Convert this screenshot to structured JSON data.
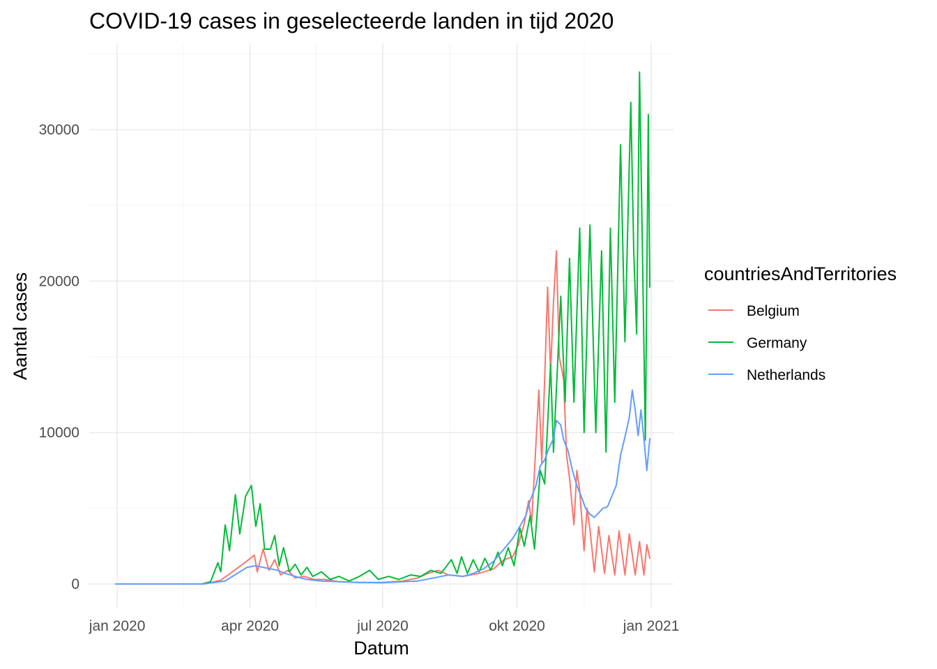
{
  "chart_data": {
    "type": "line",
    "title": "COVID-19 cases in geselecteerde landen in tijd 2020",
    "xlabel": "Datum",
    "ylabel": "Aantal cases",
    "x_range": [
      "2019-12-31",
      "2020-12-31"
    ],
    "ylim": [
      0,
      34000
    ],
    "x_ticks": [
      {
        "date": "2020-01-01",
        "label": "jan 2020"
      },
      {
        "date": "2020-04-01",
        "label": "apr 2020"
      },
      {
        "date": "2020-07-01",
        "label": "jul 2020"
      },
      {
        "date": "2020-10-01",
        "label": "okt 2020"
      },
      {
        "date": "2021-01-01",
        "label": "jan 2021"
      }
    ],
    "y_ticks": [
      {
        "value": 0,
        "label": "0"
      },
      {
        "value": 10000,
        "label": "10000"
      },
      {
        "value": 20000,
        "label": "20000"
      },
      {
        "value": 30000,
        "label": "30000"
      }
    ],
    "grid": true,
    "legend": {
      "title": "countriesAndTerritories",
      "position": "right"
    },
    "series": [
      {
        "name": "Belgium",
        "color": "#F8766D",
        "points": [
          [
            "2019-12-31",
            0
          ],
          [
            "2020-02-04",
            0
          ],
          [
            "2020-03-01",
            0
          ],
          [
            "2020-03-12",
            250
          ],
          [
            "2020-03-20",
            800
          ],
          [
            "2020-03-27",
            1300
          ],
          [
            "2020-03-31",
            1600
          ],
          [
            "2020-04-04",
            1900
          ],
          [
            "2020-04-06",
            800
          ],
          [
            "2020-04-10",
            2300
          ],
          [
            "2020-04-14",
            900
          ],
          [
            "2020-04-18",
            1600
          ],
          [
            "2020-04-22",
            600
          ],
          [
            "2020-04-27",
            900
          ],
          [
            "2020-05-02",
            400
          ],
          [
            "2020-05-08",
            500
          ],
          [
            "2020-05-15",
            300
          ],
          [
            "2020-05-22",
            300
          ],
          [
            "2020-06-01",
            150
          ],
          [
            "2020-06-15",
            100
          ],
          [
            "2020-07-01",
            100
          ],
          [
            "2020-07-15",
            200
          ],
          [
            "2020-07-25",
            400
          ],
          [
            "2020-08-01",
            700
          ],
          [
            "2020-08-08",
            900
          ],
          [
            "2020-08-15",
            600
          ],
          [
            "2020-08-25",
            500
          ],
          [
            "2020-09-05",
            700
          ],
          [
            "2020-09-15",
            1000
          ],
          [
            "2020-09-22",
            1600
          ],
          [
            "2020-09-28",
            1800
          ],
          [
            "2020-10-02",
            2600
          ],
          [
            "2020-10-06",
            4000
          ],
          [
            "2020-10-09",
            5500
          ],
          [
            "2020-10-11",
            4000
          ],
          [
            "2020-10-13",
            7500
          ],
          [
            "2020-10-16",
            12800
          ],
          [
            "2020-10-18",
            8000
          ],
          [
            "2020-10-20",
            13600
          ],
          [
            "2020-10-22",
            19600
          ],
          [
            "2020-10-24",
            14000
          ],
          [
            "2020-10-26",
            18600
          ],
          [
            "2020-10-28",
            22000
          ],
          [
            "2020-10-30",
            15000
          ],
          [
            "2020-11-02",
            13500
          ],
          [
            "2020-11-04",
            8500
          ],
          [
            "2020-11-06",
            7000
          ],
          [
            "2020-11-09",
            3900
          ],
          [
            "2020-11-11",
            7500
          ],
          [
            "2020-11-13",
            6200
          ],
          [
            "2020-11-16",
            2200
          ],
          [
            "2020-11-18",
            5000
          ],
          [
            "2020-11-20",
            3600
          ],
          [
            "2020-11-23",
            800
          ],
          [
            "2020-11-26",
            3800
          ],
          [
            "2020-11-30",
            700
          ],
          [
            "2020-12-03",
            3200
          ],
          [
            "2020-12-07",
            600
          ],
          [
            "2020-12-10",
            3500
          ],
          [
            "2020-12-14",
            600
          ],
          [
            "2020-12-17",
            3300
          ],
          [
            "2020-12-21",
            600
          ],
          [
            "2020-12-24",
            2800
          ],
          [
            "2020-12-27",
            600
          ],
          [
            "2020-12-29",
            2600
          ],
          [
            "2020-12-31",
            1700
          ]
        ]
      },
      {
        "name": "Germany",
        "color": "#00BA38",
        "points": [
          [
            "2019-12-31",
            0
          ],
          [
            "2020-02-04",
            0
          ],
          [
            "2020-02-28",
            0
          ],
          [
            "2020-03-05",
            150
          ],
          [
            "2020-03-10",
            1400
          ],
          [
            "2020-03-12",
            800
          ],
          [
            "2020-03-15",
            3900
          ],
          [
            "2020-03-18",
            2200
          ],
          [
            "2020-03-22",
            5900
          ],
          [
            "2020-03-25",
            3300
          ],
          [
            "2020-03-29",
            5800
          ],
          [
            "2020-04-02",
            6500
          ],
          [
            "2020-04-05",
            3800
          ],
          [
            "2020-04-08",
            5300
          ],
          [
            "2020-04-11",
            2300
          ],
          [
            "2020-04-15",
            2300
          ],
          [
            "2020-04-18",
            3200
          ],
          [
            "2020-04-21",
            1200
          ],
          [
            "2020-04-24",
            2400
          ],
          [
            "2020-04-28",
            800
          ],
          [
            "2020-05-02",
            1300
          ],
          [
            "2020-05-06",
            600
          ],
          [
            "2020-05-10",
            1100
          ],
          [
            "2020-05-14",
            500
          ],
          [
            "2020-05-20",
            800
          ],
          [
            "2020-05-26",
            300
          ],
          [
            "2020-06-01",
            500
          ],
          [
            "2020-06-08",
            200
          ],
          [
            "2020-06-15",
            500
          ],
          [
            "2020-06-22",
            900
          ],
          [
            "2020-06-28",
            300
          ],
          [
            "2020-07-05",
            500
          ],
          [
            "2020-07-12",
            300
          ],
          [
            "2020-07-20",
            600
          ],
          [
            "2020-07-27",
            500
          ],
          [
            "2020-08-03",
            900
          ],
          [
            "2020-08-10",
            700
          ],
          [
            "2020-08-17",
            1600
          ],
          [
            "2020-08-21",
            700
          ],
          [
            "2020-08-24",
            1800
          ],
          [
            "2020-08-28",
            700
          ],
          [
            "2020-09-01",
            1600
          ],
          [
            "2020-09-05",
            800
          ],
          [
            "2020-09-09",
            1700
          ],
          [
            "2020-09-13",
            900
          ],
          [
            "2020-09-18",
            2100
          ],
          [
            "2020-09-21",
            1200
          ],
          [
            "2020-09-25",
            2400
          ],
          [
            "2020-09-29",
            1200
          ],
          [
            "2020-10-03",
            3700
          ],
          [
            "2020-10-06",
            2500
          ],
          [
            "2020-10-10",
            4500
          ],
          [
            "2020-10-13",
            2300
          ],
          [
            "2020-10-17",
            7500
          ],
          [
            "2020-10-20",
            6600
          ],
          [
            "2020-10-24",
            14500
          ],
          [
            "2020-10-26",
            8700
          ],
          [
            "2020-10-31",
            19000
          ],
          [
            "2020-11-03",
            12000
          ],
          [
            "2020-11-06",
            21500
          ],
          [
            "2020-11-09",
            12000
          ],
          [
            "2020-11-13",
            23500
          ],
          [
            "2020-11-16",
            10000
          ],
          [
            "2020-11-20",
            23700
          ],
          [
            "2020-11-24",
            10000
          ],
          [
            "2020-11-28",
            22000
          ],
          [
            "2020-12-01",
            8700
          ],
          [
            "2020-12-04",
            23500
          ],
          [
            "2020-12-07",
            12000
          ],
          [
            "2020-12-11",
            29000
          ],
          [
            "2020-12-14",
            16000
          ],
          [
            "2020-12-18",
            31800
          ],
          [
            "2020-12-20",
            22000
          ],
          [
            "2020-12-22",
            16500
          ],
          [
            "2020-12-24",
            33800
          ],
          [
            "2020-12-26",
            22000
          ],
          [
            "2020-12-28",
            9500
          ],
          [
            "2020-12-30",
            31000
          ],
          [
            "2020-12-31",
            19600
          ]
        ]
      },
      {
        "name": "Netherlands",
        "color": "#619CFF",
        "points": [
          [
            "2019-12-31",
            0
          ],
          [
            "2020-02-04",
            0
          ],
          [
            "2020-02-28",
            0
          ],
          [
            "2020-03-08",
            100
          ],
          [
            "2020-03-15",
            200
          ],
          [
            "2020-03-20",
            500
          ],
          [
            "2020-03-25",
            800
          ],
          [
            "2020-03-30",
            1100
          ],
          [
            "2020-04-05",
            1200
          ],
          [
            "2020-04-10",
            1100
          ],
          [
            "2020-04-15",
            1000
          ],
          [
            "2020-04-20",
            900
          ],
          [
            "2020-04-25",
            700
          ],
          [
            "2020-05-02",
            500
          ],
          [
            "2020-05-10",
            300
          ],
          [
            "2020-05-20",
            200
          ],
          [
            "2020-06-01",
            150
          ],
          [
            "2020-06-15",
            100
          ],
          [
            "2020-07-01",
            80
          ],
          [
            "2020-07-15",
            150
          ],
          [
            "2020-07-25",
            200
          ],
          [
            "2020-08-05",
            400
          ],
          [
            "2020-08-15",
            600
          ],
          [
            "2020-08-25",
            500
          ],
          [
            "2020-09-01",
            700
          ],
          [
            "2020-09-08",
            1000
          ],
          [
            "2020-09-15",
            1500
          ],
          [
            "2020-09-22",
            2300
          ],
          [
            "2020-09-28",
            3000
          ],
          [
            "2020-10-03",
            3800
          ],
          [
            "2020-10-07",
            4500
          ],
          [
            "2020-10-10",
            5500
          ],
          [
            "2020-10-14",
            6500
          ],
          [
            "2020-10-17",
            7800
          ],
          [
            "2020-10-20",
            8200
          ],
          [
            "2020-10-23",
            9000
          ],
          [
            "2020-10-26",
            9600
          ],
          [
            "2020-10-28",
            10800
          ],
          [
            "2020-10-31",
            10500
          ],
          [
            "2020-11-02",
            9500
          ],
          [
            "2020-11-05",
            8800
          ],
          [
            "2020-11-08",
            7500
          ],
          [
            "2020-11-11",
            6500
          ],
          [
            "2020-11-14",
            5800
          ],
          [
            "2020-11-17",
            5000
          ],
          [
            "2020-11-20",
            4600
          ],
          [
            "2020-11-23",
            4400
          ],
          [
            "2020-11-26",
            4700
          ],
          [
            "2020-11-29",
            5000
          ],
          [
            "2020-12-02",
            5100
          ],
          [
            "2020-12-05",
            5800
          ],
          [
            "2020-12-08",
            6500
          ],
          [
            "2020-12-11",
            8500
          ],
          [
            "2020-12-14",
            9700
          ],
          [
            "2020-12-17",
            11000
          ],
          [
            "2020-12-19",
            12800
          ],
          [
            "2020-12-21",
            11500
          ],
          [
            "2020-12-23",
            9800
          ],
          [
            "2020-12-25",
            11500
          ],
          [
            "2020-12-27",
            9600
          ],
          [
            "2020-12-29",
            7500
          ],
          [
            "2020-12-31",
            9600
          ]
        ]
      }
    ]
  }
}
